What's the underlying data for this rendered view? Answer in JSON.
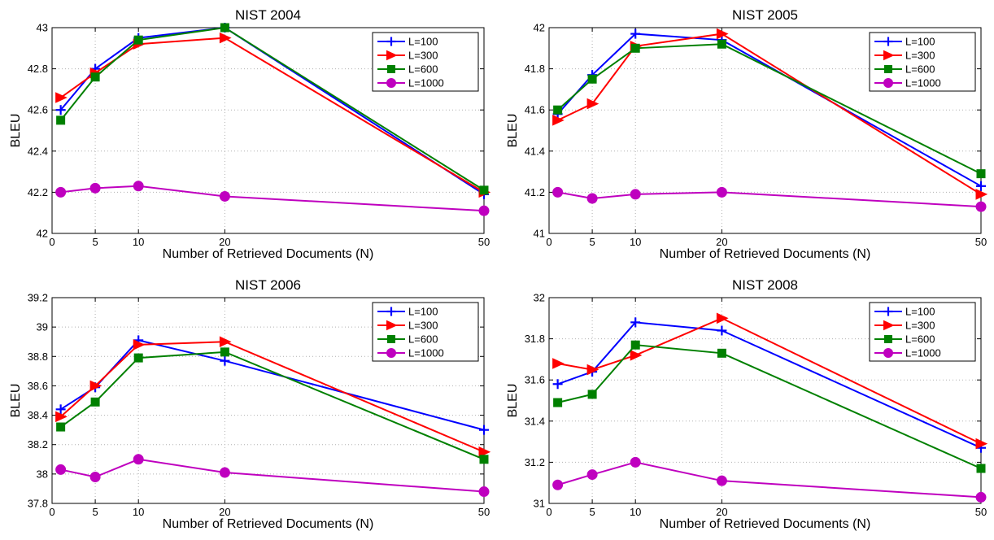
{
  "chart_data": [
    {
      "type": "line",
      "title": "NIST 2004",
      "xlabel": "Number of Retrieved Documents (N)",
      "ylabel": "BLEU",
      "x": [
        1,
        5,
        10,
        20,
        50
      ],
      "x_ticks": [
        0,
        5,
        10,
        20,
        50
      ],
      "xlim": [
        0,
        50
      ],
      "ylim": [
        42,
        43
      ],
      "y_ticks": [
        "42",
        "42.2",
        "42.4",
        "42.6",
        "42.8",
        "43"
      ],
      "grid": true,
      "legend": "top-right",
      "series": [
        {
          "name": "L=100",
          "color": "#0000ff",
          "marker": "plus",
          "values": [
            42.6,
            42.8,
            42.95,
            43.0,
            42.19
          ]
        },
        {
          "name": "L=300",
          "color": "#ff0000",
          "marker": "triangle-right",
          "values": [
            42.66,
            42.78,
            42.92,
            42.95,
            42.2
          ]
        },
        {
          "name": "L=600",
          "color": "#008000",
          "marker": "square",
          "values": [
            42.55,
            42.76,
            42.94,
            43.0,
            42.21
          ]
        },
        {
          "name": "L=1000",
          "color": "#bf00bf",
          "marker": "circle",
          "values": [
            42.2,
            42.22,
            42.23,
            42.18,
            42.11
          ]
        }
      ]
    },
    {
      "type": "line",
      "title": "NIST 2005",
      "xlabel": "Number of Retrieved Documents (N)",
      "ylabel": "BLEU",
      "x": [
        1,
        5,
        10,
        20,
        50
      ],
      "x_ticks": [
        0,
        5,
        10,
        20,
        50
      ],
      "xlim": [
        0,
        50
      ],
      "ylim": [
        41,
        42
      ],
      "y_ticks": [
        "41",
        "41.2",
        "41.4",
        "41.6",
        "41.8",
        "42"
      ],
      "grid": true,
      "legend": "top-right",
      "series": [
        {
          "name": "L=100",
          "color": "#0000ff",
          "marker": "plus",
          "values": [
            41.58,
            41.77,
            41.97,
            41.94,
            41.23
          ]
        },
        {
          "name": "L=300",
          "color": "#ff0000",
          "marker": "triangle-right",
          "values": [
            41.55,
            41.63,
            41.91,
            41.97,
            41.19
          ]
        },
        {
          "name": "L=600",
          "color": "#008000",
          "marker": "square",
          "values": [
            41.6,
            41.75,
            41.9,
            41.92,
            41.29
          ]
        },
        {
          "name": "L=1000",
          "color": "#bf00bf",
          "marker": "circle",
          "values": [
            41.2,
            41.17,
            41.19,
            41.2,
            41.13
          ]
        }
      ]
    },
    {
      "type": "line",
      "title": "NIST 2006",
      "xlabel": "Number of Retrieved Documents (N)",
      "ylabel": "BLEU",
      "x": [
        1,
        5,
        10,
        20,
        50
      ],
      "x_ticks": [
        0,
        5,
        10,
        20,
        50
      ],
      "xlim": [
        0,
        50
      ],
      "ylim": [
        37.8,
        39.2
      ],
      "y_ticks": [
        "37.8",
        "38",
        "38.2",
        "38.4",
        "38.6",
        "38.8",
        "39",
        "39.2"
      ],
      "grid": true,
      "legend": "top-right",
      "series": [
        {
          "name": "L=100",
          "color": "#0000ff",
          "marker": "plus",
          "values": [
            38.44,
            38.59,
            38.91,
            38.77,
            38.3
          ]
        },
        {
          "name": "L=300",
          "color": "#ff0000",
          "marker": "triangle-right",
          "values": [
            38.39,
            38.6,
            38.88,
            38.9,
            38.15
          ]
        },
        {
          "name": "L=600",
          "color": "#008000",
          "marker": "square",
          "values": [
            38.32,
            38.49,
            38.79,
            38.83,
            38.1
          ]
        },
        {
          "name": "L=1000",
          "color": "#bf00bf",
          "marker": "circle",
          "values": [
            38.03,
            37.98,
            38.1,
            38.01,
            37.88
          ]
        }
      ]
    },
    {
      "type": "line",
      "title": "NIST 2008",
      "xlabel": "Number of Retrieved Documents (N)",
      "ylabel": "BLEU",
      "x": [
        1,
        5,
        10,
        20,
        50
      ],
      "x_ticks": [
        0,
        5,
        10,
        20,
        50
      ],
      "xlim": [
        0,
        50
      ],
      "ylim": [
        31,
        32
      ],
      "y_ticks": [
        "31",
        "31.2",
        "31.4",
        "31.6",
        "31.8",
        "32"
      ],
      "grid": true,
      "legend": "top-right",
      "series": [
        {
          "name": "L=100",
          "color": "#0000ff",
          "marker": "plus",
          "values": [
            31.58,
            31.64,
            31.88,
            31.84,
            31.27
          ]
        },
        {
          "name": "L=300",
          "color": "#ff0000",
          "marker": "triangle-right",
          "values": [
            31.68,
            31.65,
            31.72,
            31.9,
            31.29
          ]
        },
        {
          "name": "L=600",
          "color": "#008000",
          "marker": "square",
          "values": [
            31.49,
            31.53,
            31.77,
            31.73,
            31.17
          ]
        },
        {
          "name": "L=1000",
          "color": "#bf00bf",
          "marker": "circle",
          "values": [
            31.09,
            31.14,
            31.2,
            31.11,
            31.03
          ]
        }
      ]
    }
  ]
}
